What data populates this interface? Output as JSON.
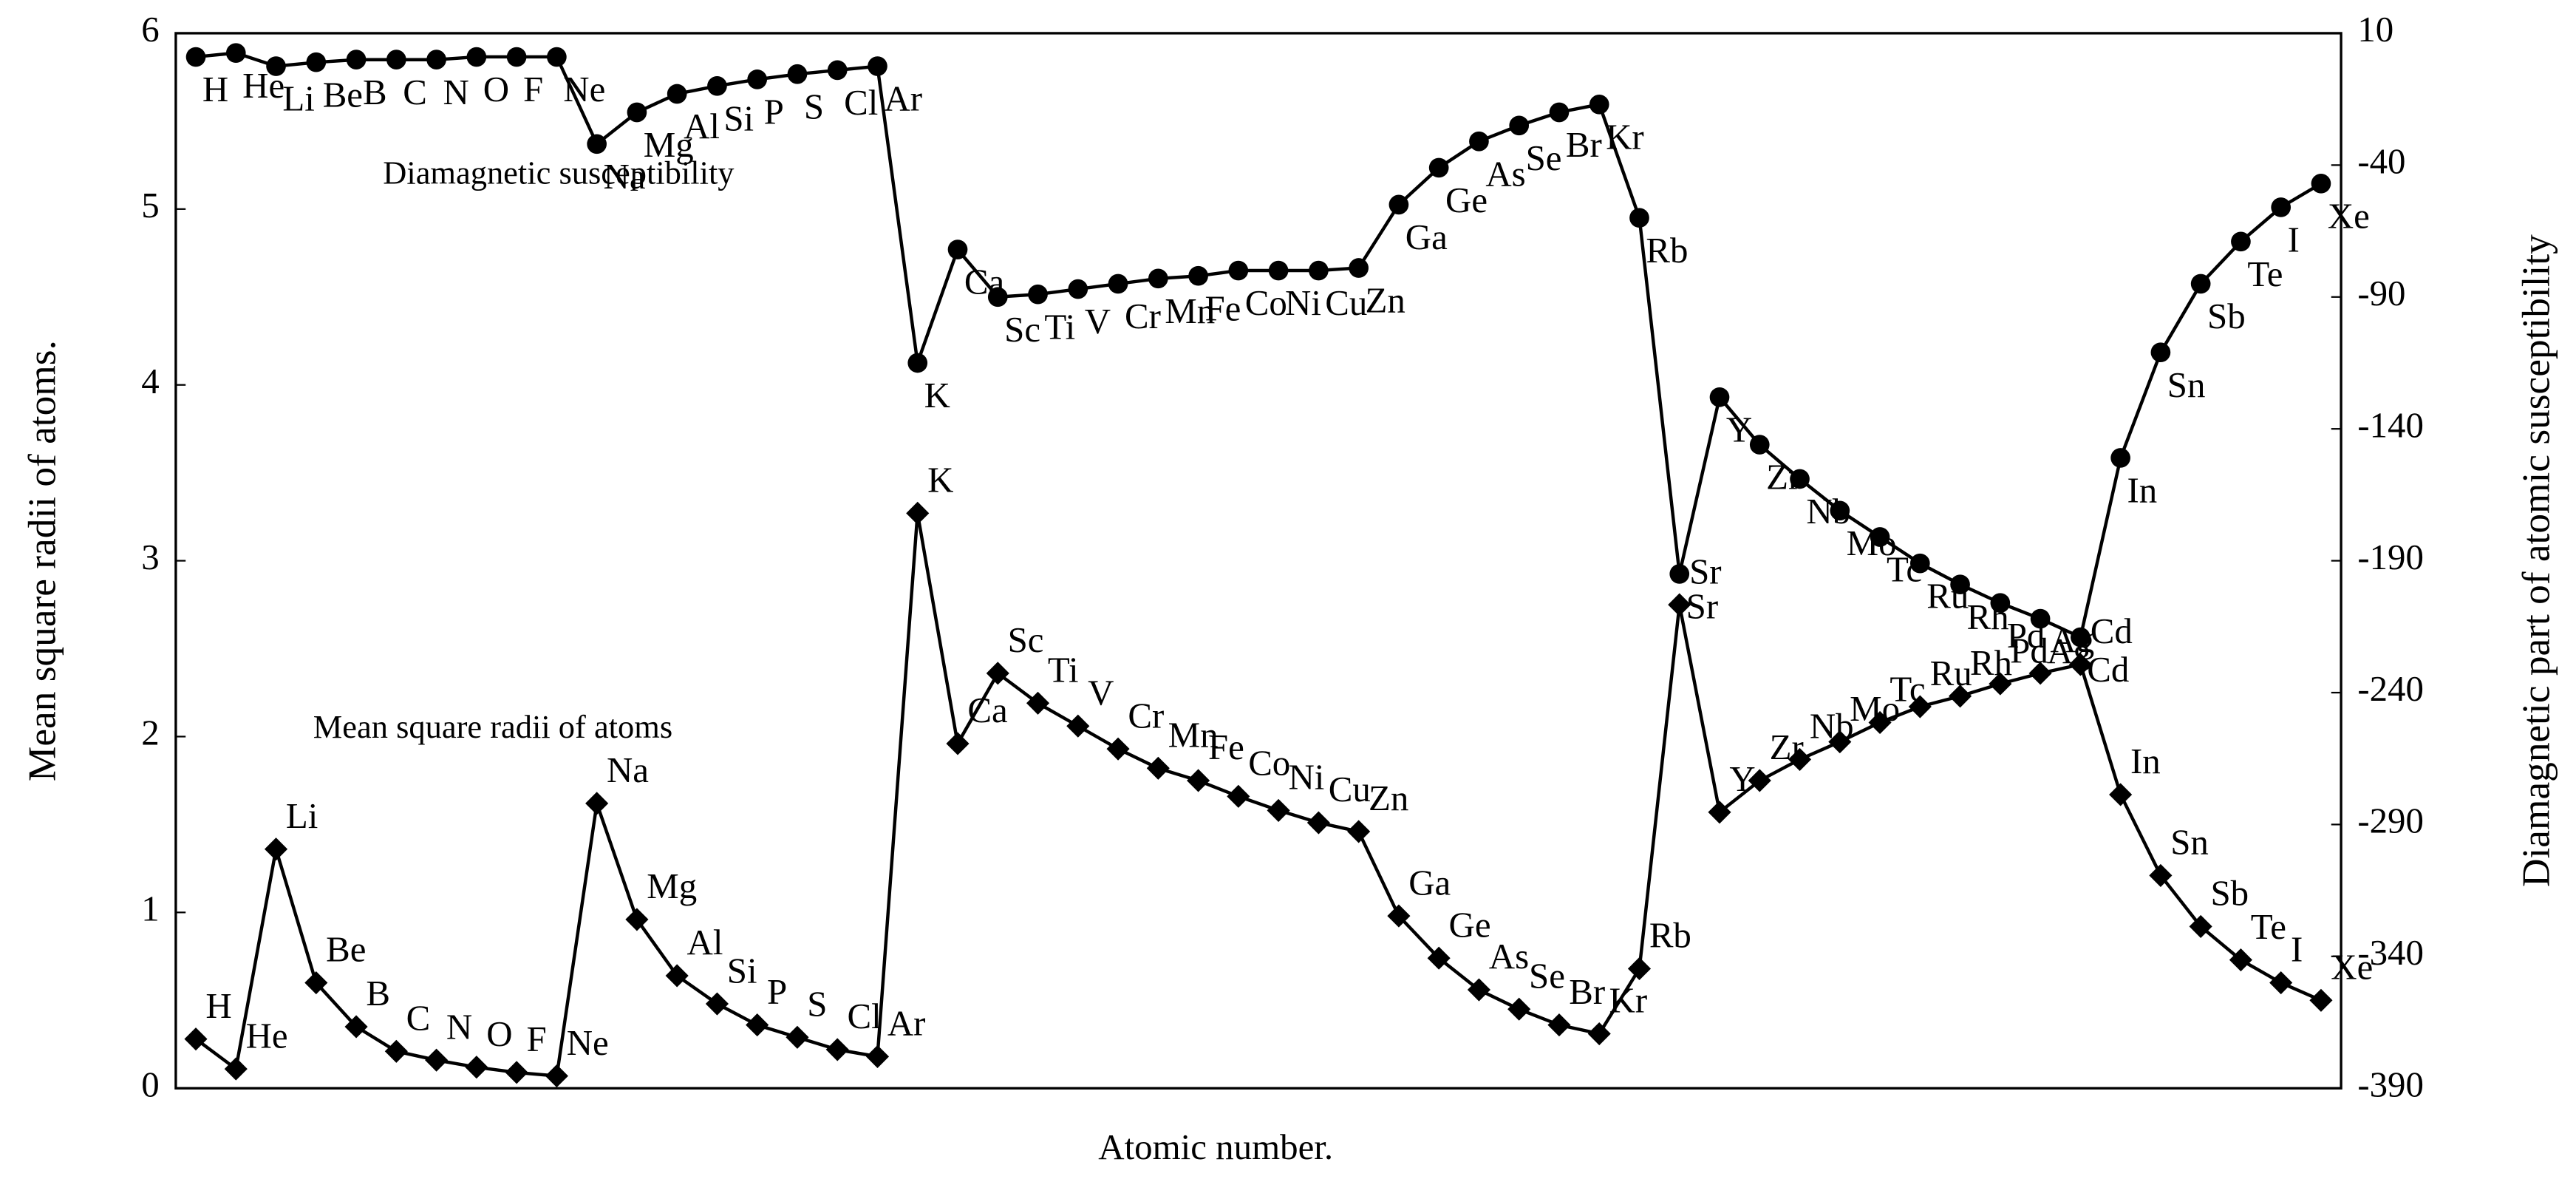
{
  "chart_data": {
    "type": "line",
    "x_label": "Atomic number.",
    "y_label": "Mean square radii of atoms.",
    "y2_label": "Diamagnetic part of atomic susceptibility",
    "annotations": [
      "Diamagnetic susceptibility",
      "Mean square radii of atoms"
    ],
    "categories": [
      "H",
      "He",
      "Li",
      "Be",
      "B",
      "C",
      "N",
      "O",
      "F",
      "Ne",
      "Na",
      "Mg",
      "Al",
      "Si",
      "P",
      "S",
      "Cl",
      "Ar",
      "K",
      "Ca",
      "Sc",
      "Ti",
      "V",
      "Cr",
      "Mn",
      "Fe",
      "Co",
      "Ni",
      "Cu",
      "Zn",
      "Ga",
      "Ge",
      "As",
      "Se",
      "Br",
      "Kr",
      "Rb",
      "Sr",
      "Y",
      "Zr",
      "Nb",
      "Mo",
      "Tc",
      "Ru",
      "Rh",
      "Pd",
      "Ag",
      "Cd",
      "In",
      "Sn",
      "Sb",
      "Te",
      "I",
      "Xe"
    ],
    "series": [
      {
        "name": "Mean square radii of atoms",
        "color": "#000000",
        "marker": "diamond",
        "values": [
          0.28,
          0.11,
          1.36,
          0.6,
          0.35,
          0.21,
          0.16,
          0.12,
          0.09,
          0.07,
          1.62,
          0.96,
          0.64,
          0.48,
          0.36,
          0.29,
          0.22,
          0.18,
          3.27,
          1.96,
          2.36,
          2.19,
          2.06,
          1.93,
          1.82,
          1.75,
          1.66,
          1.58,
          1.51,
          1.46,
          0.98,
          0.74,
          0.56,
          0.45,
          0.36,
          0.31,
          0.68,
          2.75,
          1.57,
          1.75,
          1.87,
          1.97,
          2.08,
          2.17,
          2.23,
          2.3,
          2.36,
          2.41,
          1.67,
          1.21,
          0.92,
          0.73,
          0.6,
          0.5
        ]
      },
      {
        "name": "Diamagnetic susceptibility",
        "color": "#000000",
        "marker": "circle",
        "axis": "y2",
        "values": [
          1,
          2.5,
          -2.5,
          -1,
          0,
          0,
          0,
          1,
          1,
          1,
          -32,
          -20,
          -13,
          -10,
          -7.5,
          -5.5,
          -4,
          -2.5,
          -115,
          -72,
          -90,
          -89,
          -87,
          -85,
          -83,
          -82,
          -80,
          -80,
          -80,
          -79,
          -55,
          -41,
          -31,
          -25,
          -20,
          -17,
          -60,
          -195,
          -128,
          -146,
          -159,
          -171,
          -181,
          -191,
          -199,
          -206,
          -212,
          -219,
          -151,
          -111,
          -85,
          -69,
          -56,
          -47
        ]
      }
    ],
    "ylim": [
      0,
      6
    ],
    "yticks": [
      0,
      1,
      2,
      3,
      4,
      5,
      6
    ],
    "y2lim": [
      -390,
      10
    ],
    "y2ticks": [
      10,
      -40,
      -90,
      -140,
      -190,
      -240,
      -290,
      -340,
      -390
    ]
  }
}
